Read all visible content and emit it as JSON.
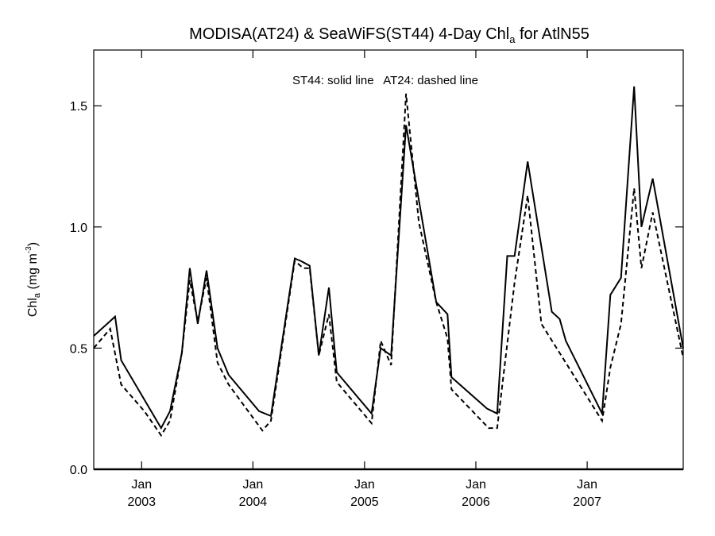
{
  "chart_data": {
    "type": "line",
    "title": {
      "prefix": "MODISA(AT24) & SeaWiFS(ST44) 4-Day Chl",
      "subscript": "a",
      "suffix": " for AtlN55"
    },
    "ylabel": {
      "base": "Chl",
      "subscript": "a",
      "units": " (mg m",
      "units_sup": "-3",
      "close": ")"
    },
    "annotation": "ST44: solid line   AT24: dashed line",
    "ylim": [
      0.0,
      1.73
    ],
    "xlim": [
      "2002-07-28",
      "2007-11-12"
    ],
    "yticks": [
      {
        "value": 0.0,
        "label": "0.0"
      },
      {
        "value": 0.5,
        "label": "0.5"
      },
      {
        "value": 1.0,
        "label": "1.0"
      },
      {
        "value": 1.5,
        "label": "1.5"
      }
    ],
    "xticks": [
      {
        "date": "2003-01-01",
        "month": "Jan",
        "year": "2003"
      },
      {
        "date": "2004-01-01",
        "month": "Jan",
        "year": "2004"
      },
      {
        "date": "2005-01-01",
        "month": "Jan",
        "year": "2005"
      },
      {
        "date": "2006-01-01",
        "month": "Jan",
        "year": "2006"
      },
      {
        "date": "2007-01-01",
        "month": "Jan",
        "year": "2007"
      }
    ],
    "series": [
      {
        "name": "ST44",
        "style": "solid",
        "color": "#000000",
        "points": [
          [
            "2002-07-28",
            0.55
          ],
          [
            "2002-10-06",
            0.63
          ],
          [
            "2002-10-26",
            0.45
          ],
          [
            "2003-03-06",
            0.17
          ],
          [
            "2003-04-04",
            0.24
          ],
          [
            "2003-05-13",
            0.48
          ],
          [
            "2003-06-08",
            0.83
          ],
          [
            "2003-07-04",
            0.6
          ],
          [
            "2003-08-02",
            0.82
          ],
          [
            "2003-09-07",
            0.5
          ],
          [
            "2003-10-13",
            0.39
          ],
          [
            "2004-01-21",
            0.24
          ],
          [
            "2004-02-29",
            0.22
          ],
          [
            "2004-05-17",
            0.87
          ],
          [
            "2004-06-05",
            0.86
          ],
          [
            "2004-07-05",
            0.84
          ],
          [
            "2004-08-04",
            0.47
          ],
          [
            "2004-09-06",
            0.75
          ],
          [
            "2004-10-02",
            0.4
          ],
          [
            "2005-01-24",
            0.23
          ],
          [
            "2005-02-23",
            0.5
          ],
          [
            "2005-03-29",
            0.47
          ],
          [
            "2005-05-17",
            1.42
          ],
          [
            "2005-08-24",
            0.69
          ],
          [
            "2005-09-30",
            0.64
          ],
          [
            "2005-10-13",
            0.38
          ],
          [
            "2006-02-07",
            0.25
          ],
          [
            "2006-03-12",
            0.23
          ],
          [
            "2006-04-14",
            0.88
          ],
          [
            "2006-05-08",
            0.88
          ],
          [
            "2006-06-20",
            1.27
          ],
          [
            "2006-09-07",
            0.65
          ],
          [
            "2006-10-03",
            0.62
          ],
          [
            "2006-10-23",
            0.53
          ],
          [
            "2007-02-19",
            0.23
          ],
          [
            "2007-03-18",
            0.72
          ],
          [
            "2007-04-22",
            0.79
          ],
          [
            "2007-06-04",
            1.58
          ],
          [
            "2007-06-28",
            1.0
          ],
          [
            "2007-08-04",
            1.2
          ],
          [
            "2007-11-12",
            0.5
          ]
        ]
      },
      {
        "name": "AT24",
        "style": "dashed",
        "color": "#000000",
        "points": [
          [
            "2002-07-28",
            0.5
          ],
          [
            "2002-09-20",
            0.58
          ],
          [
            "2002-10-26",
            0.35
          ],
          [
            "2003-01-10",
            0.24
          ],
          [
            "2003-03-06",
            0.14
          ],
          [
            "2003-04-04",
            0.2
          ],
          [
            "2003-05-13",
            0.48
          ],
          [
            "2003-06-08",
            0.78
          ],
          [
            "2003-07-04",
            0.61
          ],
          [
            "2003-08-02",
            0.79
          ],
          [
            "2003-09-07",
            0.44
          ],
          [
            "2003-10-13",
            0.35
          ],
          [
            "2004-02-01",
            0.16
          ],
          [
            "2004-02-29",
            0.2
          ],
          [
            "2004-05-17",
            0.86
          ],
          [
            "2004-06-14",
            0.83
          ],
          [
            "2004-07-05",
            0.83
          ],
          [
            "2004-08-04",
            0.47
          ],
          [
            "2004-09-06",
            0.64
          ],
          [
            "2004-10-02",
            0.36
          ],
          [
            "2005-01-24",
            0.19
          ],
          [
            "2005-02-23",
            0.53
          ],
          [
            "2005-03-29",
            0.43
          ],
          [
            "2005-05-17",
            1.55
          ],
          [
            "2005-06-28",
            1.02
          ],
          [
            "2005-08-24",
            0.69
          ],
          [
            "2005-09-30",
            0.54
          ],
          [
            "2005-10-13",
            0.33
          ],
          [
            "2006-02-12",
            0.17
          ],
          [
            "2006-03-12",
            0.17
          ],
          [
            "2006-05-08",
            0.77
          ],
          [
            "2006-06-20",
            1.13
          ],
          [
            "2006-08-04",
            0.6
          ],
          [
            "2006-10-03",
            0.48
          ],
          [
            "2007-02-19",
            0.2
          ],
          [
            "2007-03-18",
            0.42
          ],
          [
            "2007-04-22",
            0.6
          ],
          [
            "2007-06-04",
            1.16
          ],
          [
            "2007-06-28",
            0.83
          ],
          [
            "2007-08-04",
            1.06
          ],
          [
            "2007-11-12",
            0.46
          ]
        ]
      }
    ],
    "grid": false,
    "legend": "none (annotation text at top-center)"
  }
}
